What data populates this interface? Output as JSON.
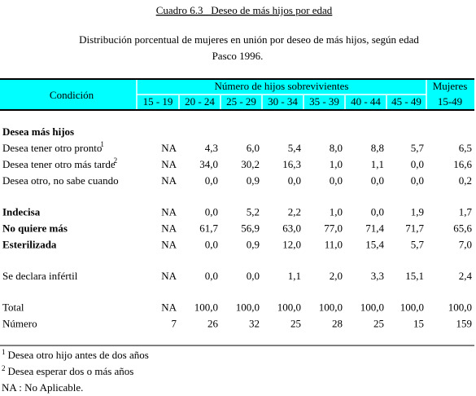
{
  "header": {
    "title": "Cuadro 6.3   Deseo de más hijos por edad",
    "subtitle": [
      "Distribución porcentual de mujeres en unión por deseo de más hijos, según edad",
      "Pasco 1996."
    ]
  },
  "table": {
    "columns": {
      "condition": "Condición",
      "group": "Número de hijos sobrevivientes",
      "ages": [
        "15 - 19",
        "20 - 24",
        "25 - 29",
        "30 - 34",
        "35 - 39",
        "40 - 44",
        "45 - 49"
      ],
      "women": [
        "Mujeres",
        "15-49"
      ]
    },
    "groups": [
      [
        {
          "label": "Desea más hijos",
          "bold": true
        },
        {
          "label": "Desea tener otro pronto",
          "note": "1",
          "values": [
            "NA",
            "4,3",
            "6,0",
            "5,4",
            "8,0",
            "8,8",
            "5,7",
            "6,5"
          ]
        },
        {
          "label": "Desea tener otro más tarde",
          "note": "2",
          "values": [
            "NA",
            "34,0",
            "30,2",
            "16,3",
            "1,0",
            "1,1",
            "0,0",
            "16,6"
          ]
        },
        {
          "label": "Desea otro, no sabe cuando",
          "values": [
            "NA",
            "0,0",
            "0,9",
            "0,0",
            "0,0",
            "0,0",
            "0,0",
            "0,2"
          ]
        }
      ],
      [
        {
          "label": "Indecisa",
          "bold": true,
          "values": [
            "NA",
            "0,0",
            "5,2",
            "2,2",
            "1,0",
            "0,0",
            "1,9",
            "1,7"
          ]
        },
        {
          "label": "No quiere más",
          "bold": true,
          "values": [
            "NA",
            "61,7",
            "56,9",
            "63,0",
            "77,0",
            "71,4",
            "71,7",
            "65,6"
          ]
        },
        {
          "label": "Esterilizada",
          "bold": true,
          "values": [
            "NA",
            "0,0",
            "0,9",
            "12,0",
            "11,0",
            "15,4",
            "5,7",
            "7,0"
          ]
        }
      ],
      [
        {
          "label": "Se declara infértil",
          "values": [
            "NA",
            "0,0",
            "0,0",
            "1,1",
            "2,0",
            "3,3",
            "15,1",
            "2,4"
          ]
        }
      ],
      [
        {
          "label": "Total",
          "values": [
            "NA",
            "100,0",
            "100,0",
            "100,0",
            "100,0",
            "100,0",
            "100,0",
            "100,0"
          ]
        },
        {
          "label": "Número",
          "values": [
            "7",
            "26",
            "32",
            "25",
            "28",
            "25",
            "15",
            "159"
          ]
        }
      ]
    ]
  },
  "footnotes": [
    {
      "mark": "1",
      "text": "Desea otro hijo antes de dos años"
    },
    {
      "mark": "2",
      "text": "Desea esperar dos o más años"
    },
    {
      "text": "NA : No Aplicable."
    }
  ]
}
